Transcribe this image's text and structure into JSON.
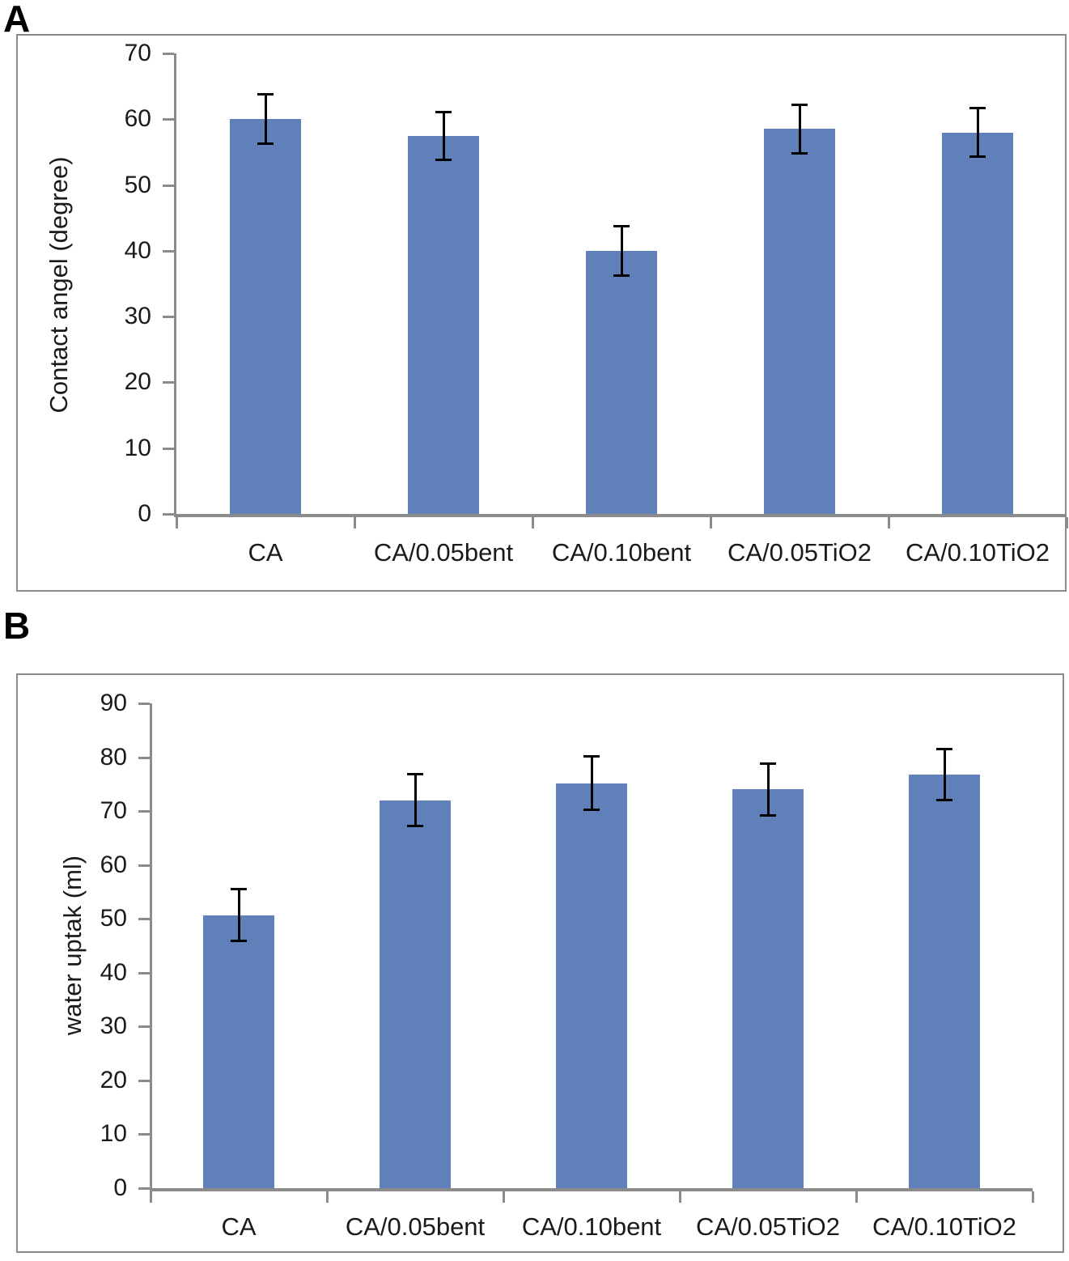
{
  "figure": {
    "panels": [
      {
        "label": "A"
      },
      {
        "label": "B"
      }
    ]
  },
  "chart_data": [
    {
      "type": "bar",
      "panel_label": "A",
      "title": "",
      "xlabel": "",
      "ylabel": "Contact angel (degree)",
      "categories": [
        "CA",
        "CA/0.05bent",
        "CA/0.10bent",
        "CA/0.05TiO2",
        "CA/0.10TiO2"
      ],
      "values": [
        60,
        57.4,
        40,
        58.5,
        58
      ],
      "errors": [
        3.8,
        3.7,
        3.8,
        3.7,
        3.8
      ],
      "ylim": [
        0,
        70
      ],
      "ytick_step": 10,
      "ytick_labels": [
        "0",
        "10",
        "20",
        "30",
        "40",
        "50",
        "60",
        "70"
      ],
      "grid": false,
      "legend": "none",
      "bar_color": "#5f80b9",
      "error_bar_color": "#000000",
      "axis_color": "#8b8b8b"
    },
    {
      "type": "bar",
      "panel_label": "B",
      "title": "",
      "xlabel": "",
      "ylabel": "water uptak (ml)",
      "categories": [
        "CA",
        "CA/0.05bent",
        "CA/0.10bent",
        "CA/0.05TiO2",
        "CA/0.10TiO2"
      ],
      "values": [
        50.7,
        72,
        75.2,
        74,
        76.8
      ],
      "errors": [
        4.9,
        4.9,
        5.0,
        4.9,
        4.8
      ],
      "ylim": [
        0,
        90
      ],
      "ytick_step": 10,
      "ytick_labels": [
        "0",
        "10",
        "20",
        "30",
        "40",
        "50",
        "60",
        "70",
        "80",
        "90"
      ],
      "grid": false,
      "legend": "none",
      "bar_color": "#5f80b9",
      "error_bar_color": "#000000",
      "axis_color": "#8b8b8b"
    }
  ]
}
